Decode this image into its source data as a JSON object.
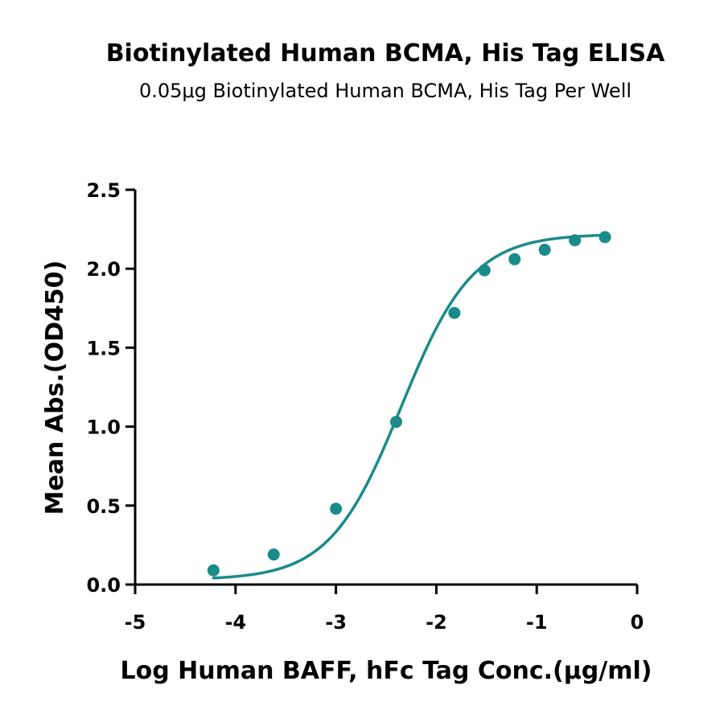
{
  "colors": {
    "series": "#1a8a8a",
    "axis": "#000000"
  },
  "chart_data": {
    "type": "scatter",
    "title": "Biotinylated Human BCMA, His Tag ELISA",
    "subtitle": "0.05μg Biotinylated Human BCMA, His Tag Per Well",
    "xlabel": "Log Human BAFF, hFc Tag Conc.(μg/ml)",
    "ylabel": "Mean Abs.(OD450)",
    "xlim": [
      -5,
      0
    ],
    "ylim": [
      0,
      2.5
    ],
    "x_ticks": [
      -5,
      -4,
      -3,
      -2,
      -1,
      0
    ],
    "x_tick_labels": [
      "-5",
      "-4",
      "-3",
      "-2",
      "-1",
      "0"
    ],
    "y_ticks": [
      0,
      0.5,
      1.0,
      1.5,
      2.0,
      2.5
    ],
    "y_tick_labels": [
      "0.0",
      "0.5",
      "1.0",
      "1.5",
      "2.0",
      "2.5"
    ],
    "grid": false,
    "fit": "sigmoidal four-parameter logistic curve",
    "series": [
      {
        "x": [
          -4.22,
          -3.62,
          -3.0,
          -2.4,
          -1.82,
          -1.52,
          -1.22,
          -0.92,
          -0.62,
          -0.32
        ],
        "y": [
          0.09,
          0.19,
          0.48,
          1.03,
          1.72,
          1.99,
          2.06,
          2.12,
          2.18,
          2.2
        ]
      }
    ]
  }
}
